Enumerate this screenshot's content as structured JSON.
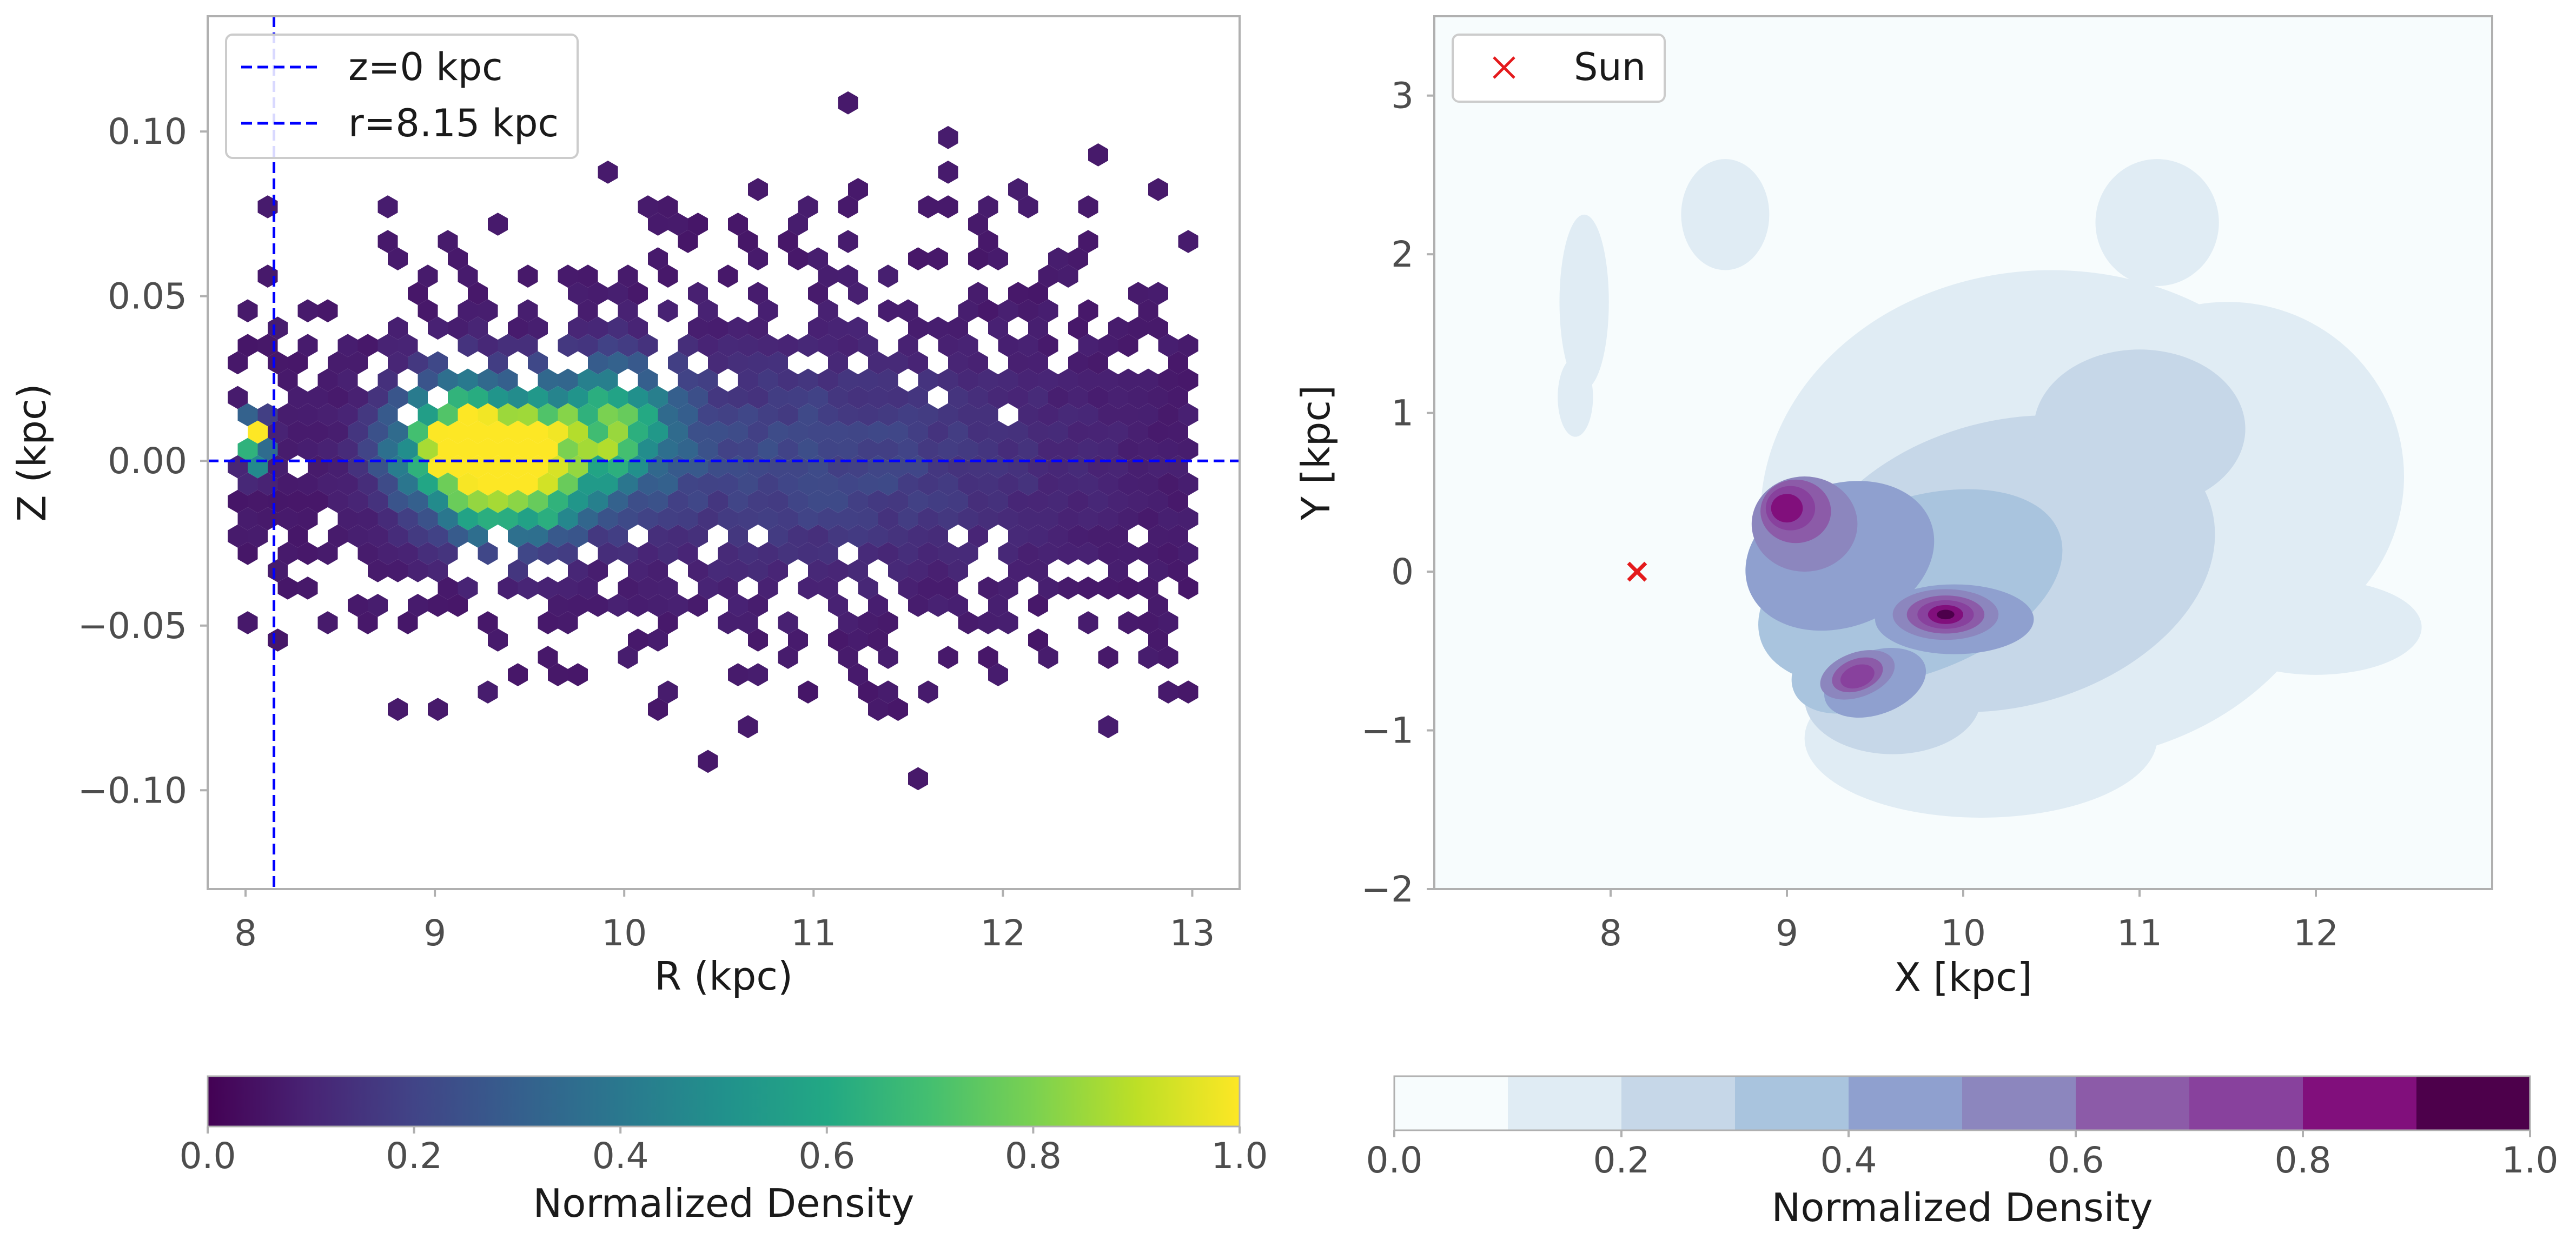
{
  "figure": {
    "description_free": true
  },
  "chart_data": [
    {
      "type": "hexbin",
      "title": "",
      "xlabel": "R (kpc)",
      "ylabel": "Z (kpc)",
      "xlim": [
        7.8,
        13.25
      ],
      "ylim": [
        -0.13,
        0.135
      ],
      "xticks": [
        8,
        9,
        10,
        11,
        12,
        13
      ],
      "yticks": [
        0.1,
        0.05,
        0.0,
        -0.05,
        -0.1
      ],
      "ytick_labels": [
        "0.10",
        "0.05",
        "0.00",
        "−0.05",
        "−0.10"
      ],
      "grid": false,
      "reference_lines": [
        {
          "orientation": "horizontal",
          "value": 0,
          "label": "z=0 kpc",
          "color": "#0000ff",
          "style": "dashed"
        },
        {
          "orientation": "vertical",
          "value": 8.15,
          "label": "r=8.15 kpc",
          "color": "#0000ff",
          "style": "dashed"
        }
      ],
      "legend": {
        "placement": "upper-left",
        "entries": [
          "z=0 kpc",
          "r=8.15 kpc"
        ]
      },
      "density_peaks": [
        {
          "R": 9.15,
          "Z": 0.005,
          "density": 0.9
        },
        {
          "R": 9.45,
          "Z": -0.005,
          "density": 0.82
        },
        {
          "R": 9.9,
          "Z": 0.01,
          "density": 0.62
        },
        {
          "R": 8.05,
          "Z": 0.006,
          "density": 1.0
        }
      ],
      "colorbar": {
        "label": "Normalized Density",
        "colormap": "viridis",
        "range": [
          0.0,
          1.0
        ],
        "ticks": [
          "0.0",
          "0.2",
          "0.4",
          "0.6",
          "0.8",
          "1.0"
        ]
      }
    },
    {
      "type": "contour",
      "title": "",
      "xlabel": "X [kpc]",
      "ylabel": "Y [kpc]",
      "xlim": [
        7.0,
        13.0
      ],
      "ylim": [
        -2.0,
        3.5
      ],
      "xticks": [
        8,
        9,
        10,
        11,
        12
      ],
      "yticks": [
        3,
        2,
        1,
        0,
        -1,
        -2
      ],
      "ytick_labels": [
        "3",
        "2",
        "1",
        "0",
        "−1",
        "−2"
      ],
      "grid": false,
      "markers": [
        {
          "label": "Sun",
          "x": 8.15,
          "y": 0.0,
          "marker": "x",
          "color": "#e41a1c"
        }
      ],
      "legend": {
        "placement": "upper-left",
        "entries": [
          "Sun"
        ]
      },
      "density_peaks": [
        {
          "x": 9.0,
          "y": 0.4,
          "density": 0.85
        },
        {
          "x": 9.9,
          "y": -0.27,
          "density": 0.95
        },
        {
          "x": 9.4,
          "y": -0.65,
          "density": 0.8
        }
      ],
      "levels": [
        0.0,
        0.1,
        0.2,
        0.3,
        0.4,
        0.5,
        0.6,
        0.7,
        0.8,
        0.9,
        1.0
      ],
      "colorbar": {
        "label": "Normalized Density",
        "colormap": "BuPu",
        "range": [
          0.0,
          1.0
        ],
        "ticks": [
          "0.0",
          "0.2",
          "0.4",
          "0.6",
          "0.8",
          "1.0"
        ],
        "colors": [
          "#f7fcfd",
          "#e0ecf4",
          "#c6d7e8",
          "#a9c4de",
          "#8fa0cf",
          "#8c86be",
          "#8c5ba8",
          "#88419d",
          "#810f7c",
          "#4d004b"
        ]
      }
    }
  ]
}
